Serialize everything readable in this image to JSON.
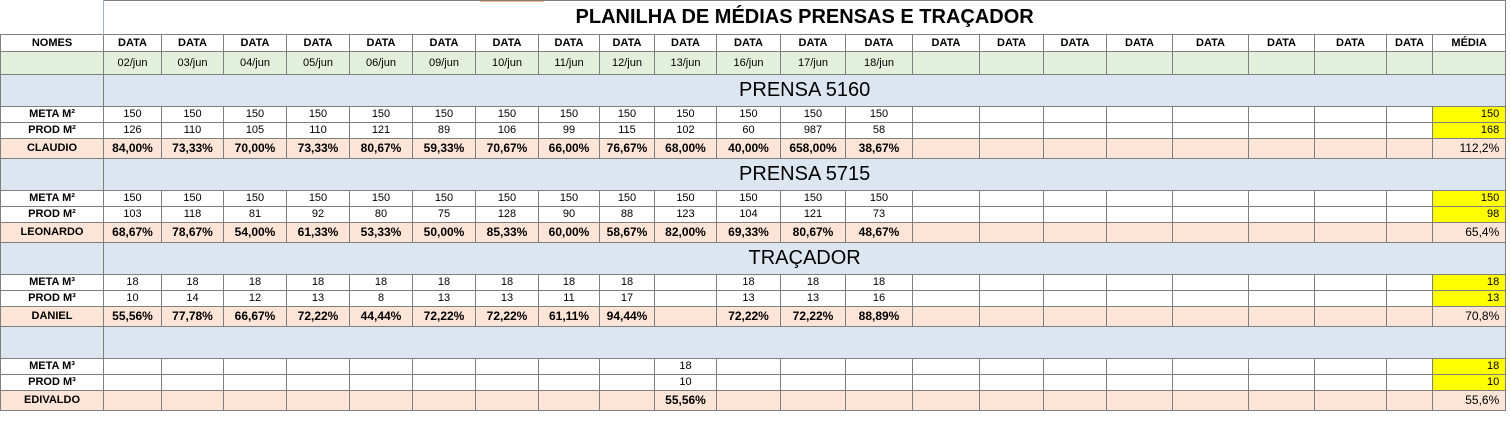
{
  "title": "PLANILHA DE MÉDIAS PRENSAS E TRAÇADOR",
  "header": {
    "names_label": "NOMES",
    "date_label": "DATA",
    "media_label": "MÉDIA",
    "dates": [
      "02/jun",
      "03/jun",
      "04/jun",
      "05/jun",
      "06/jun",
      "09/jun",
      "10/jun",
      "11/jun",
      "12/jun",
      "13/jun",
      "16/jun",
      "17/jun",
      "18/jun",
      "",
      "",
      "",
      "",
      "",
      "",
      "",
      ""
    ]
  },
  "sections": [
    {
      "title": "PRENSA 5160",
      "meta_label": "META M²",
      "prod_label": "PROD M²",
      "person": "CLAUDIO",
      "meta": [
        "150",
        "150",
        "150",
        "150",
        "150",
        "150",
        "150",
        "150",
        "150",
        "150",
        "150",
        "150",
        "150",
        "",
        "",
        "",
        "",
        "",
        "",
        "",
        ""
      ],
      "prod": [
        "126",
        "110",
        "105",
        "110",
        "121",
        "89",
        "106",
        "99",
        "115",
        "102",
        "60",
        "987",
        "58",
        "",
        "",
        "",
        "",
        "",
        "",
        "",
        ""
      ],
      "perc": [
        "84,00%",
        "73,33%",
        "70,00%",
        "73,33%",
        "80,67%",
        "59,33%",
        "70,67%",
        "66,00%",
        "76,67%",
        "68,00%",
        "40,00%",
        "658,00%",
        "38,67%",
        "",
        "",
        "",
        "",
        "",
        "",
        "",
        ""
      ],
      "media_meta": "150",
      "media_prod": "168",
      "media_perc": "112,2%"
    },
    {
      "title": "PRENSA 5715",
      "meta_label": "META M²",
      "prod_label": "PROD M²",
      "person": "LEONARDO",
      "meta": [
        "150",
        "150",
        "150",
        "150",
        "150",
        "150",
        "150",
        "150",
        "150",
        "150",
        "150",
        "150",
        "150",
        "",
        "",
        "",
        "",
        "",
        "",
        "",
        ""
      ],
      "prod": [
        "103",
        "118",
        "81",
        "92",
        "80",
        "75",
        "128",
        "90",
        "88",
        "123",
        "104",
        "121",
        "73",
        "",
        "",
        "",
        "",
        "",
        "",
        "",
        ""
      ],
      "perc": [
        "68,67%",
        "78,67%",
        "54,00%",
        "61,33%",
        "53,33%",
        "50,00%",
        "85,33%",
        "60,00%",
        "58,67%",
        "82,00%",
        "69,33%",
        "80,67%",
        "48,67%",
        "",
        "",
        "",
        "",
        "",
        "",
        "",
        ""
      ],
      "media_meta": "150",
      "media_prod": "98",
      "media_perc": "65,4%"
    },
    {
      "title": "TRAÇADOR",
      "meta_label": "META M³",
      "prod_label": "PROD M³",
      "person": "DANIEL",
      "meta": [
        "18",
        "18",
        "18",
        "18",
        "18",
        "18",
        "18",
        "18",
        "18",
        "",
        "18",
        "18",
        "18",
        "",
        "",
        "",
        "",
        "",
        "",
        "",
        ""
      ],
      "prod": [
        "10",
        "14",
        "12",
        "13",
        "8",
        "13",
        "13",
        "11",
        "17",
        "",
        "13",
        "13",
        "16",
        "",
        "",
        "",
        "",
        "",
        "",
        "",
        ""
      ],
      "perc": [
        "55,56%",
        "77,78%",
        "66,67%",
        "72,22%",
        "44,44%",
        "72,22%",
        "72,22%",
        "61,11%",
        "94,44%",
        "",
        "72,22%",
        "72,22%",
        "88,89%",
        "",
        "",
        "",
        "",
        "",
        "",
        "",
        ""
      ],
      "media_meta": "18",
      "media_prod": "13",
      "media_perc": "70,8%"
    },
    {
      "title": "",
      "meta_label": "META M³",
      "prod_label": "PROD M³",
      "person": "EDIVALDO",
      "meta": [
        "",
        "",
        "",
        "",
        "",
        "",
        "",
        "",
        "",
        "18",
        "",
        "",
        "",
        "",
        "",
        "",
        "",
        "",
        "",
        "",
        ""
      ],
      "prod": [
        "",
        "",
        "",
        "",
        "",
        "",
        "",
        "",
        "",
        "10",
        "",
        "",
        "",
        "",
        "",
        "",
        "",
        "",
        "",
        "",
        ""
      ],
      "perc": [
        "",
        "",
        "",
        "",
        "",
        "",
        "",
        "",
        "",
        "55,56%",
        "",
        "",
        "",
        "",
        "",
        "",
        "",
        "",
        "",
        "",
        ""
      ],
      "media_meta": "18",
      "media_prod": "10",
      "media_perc": "55,6%"
    }
  ],
  "colors": {
    "date_row": "#e2efda",
    "section_band": "#dce6f1",
    "percent_row": "#fce4d6",
    "media_highlight": "#ffff00"
  }
}
